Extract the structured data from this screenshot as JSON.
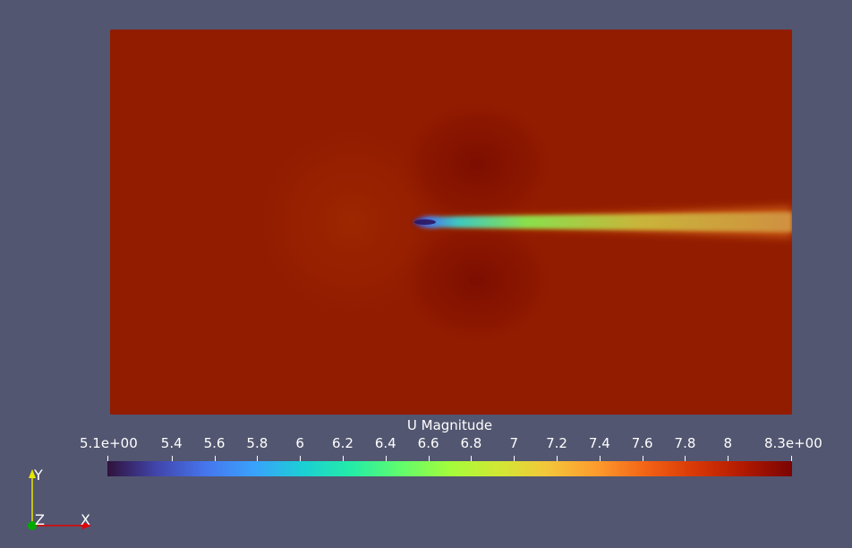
{
  "colorbar": {
    "title": "U Magnitude",
    "min": 5.1,
    "max": 8.3,
    "ticks": [
      {
        "value": 5.1,
        "label": "5.1e+00"
      },
      {
        "value": 5.4,
        "label": "5.4"
      },
      {
        "value": 5.6,
        "label": "5.6"
      },
      {
        "value": 5.8,
        "label": "5.8"
      },
      {
        "value": 6.0,
        "label": "6"
      },
      {
        "value": 6.2,
        "label": "6.2"
      },
      {
        "value": 6.4,
        "label": "6.4"
      },
      {
        "value": 6.6,
        "label": "6.6"
      },
      {
        "value": 6.8,
        "label": "6.8"
      },
      {
        "value": 7.0,
        "label": "7"
      },
      {
        "value": 7.2,
        "label": "7.2"
      },
      {
        "value": 7.4,
        "label": "7.4"
      },
      {
        "value": 7.6,
        "label": "7.6"
      },
      {
        "value": 7.8,
        "label": "7.8"
      },
      {
        "value": 8.0,
        "label": "8"
      },
      {
        "value": 8.3,
        "label": "8.3e+00"
      }
    ],
    "gradient_colors": [
      "#30123b",
      "#4145ab",
      "#4675ed",
      "#39a2fc",
      "#1bcfd4",
      "#24eca6",
      "#61fc6c",
      "#a4fc3b",
      "#d1e834",
      "#f3c63a",
      "#fe9b2d",
      "#f36315",
      "#d93806",
      "#b11901",
      "#7a0403"
    ]
  },
  "field": {
    "background_color": "#921c00",
    "wake_color_core": "#4a5bd8",
    "wake_color_mid": "#5fd38a",
    "wake_color_far": "#c8a440"
  },
  "axes": {
    "y_label": "Y",
    "z_label": "Z",
    "x_label": "X",
    "y_color": "#e6e600",
    "x_color": "#e60000",
    "z_color": "#00aa00"
  }
}
